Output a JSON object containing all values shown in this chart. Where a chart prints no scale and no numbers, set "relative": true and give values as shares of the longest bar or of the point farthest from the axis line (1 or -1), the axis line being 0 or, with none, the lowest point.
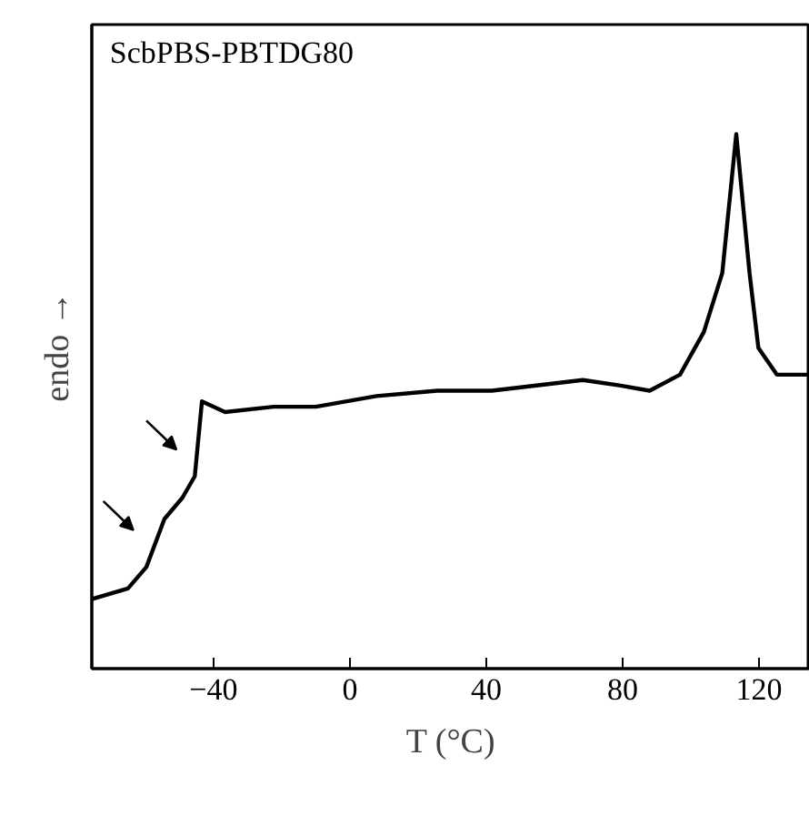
{
  "chart_data": {
    "type": "line",
    "title": "ScbPBS-PBTDG80",
    "xlabel": "T (°C)",
    "ylabel": "endo →",
    "relative": true,
    "x": [
      -75.7,
      -65.1,
      -59.7,
      -54.4,
      -49.1,
      -45.5,
      -43.4,
      -36.6,
      -22.4,
      -10,
      7.8,
      25.6,
      41.6,
      68.3,
      79,
      87.9,
      96.8,
      103.8,
      109.2,
      113.3,
      117.2,
      119.8,
      125.2,
      134.9
    ],
    "series": [
      {
        "color": "#000000",
        "values": [
          0.13,
          0.15,
          0.19,
          0.28,
          0.32,
          0.36,
          0.5,
          0.48,
          0.49,
          0.49,
          0.51,
          0.52,
          0.52,
          0.54,
          0.53,
          0.52,
          0.55,
          0.63,
          0.74,
          1.0,
          0.74,
          0.6,
          0.55,
          0.55
        ]
      }
    ],
    "xlim": [
      -75.7,
      134.9
    ],
    "xticks": [
      -40,
      0,
      40,
      80,
      120
    ],
    "grid": false,
    "marker": "none",
    "line_style": "solid"
  }
}
